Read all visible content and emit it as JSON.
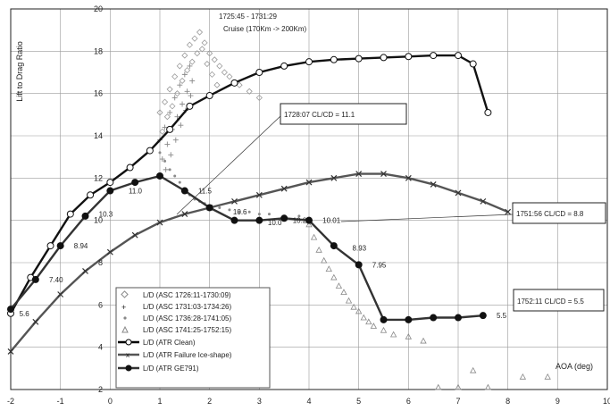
{
  "chart_data": {
    "type": "scatter",
    "title": "",
    "xlabel": "AOA (deg)",
    "ylabel": "Lift to Drag Ratio",
    "xlim": [
      -2,
      10
    ],
    "ylim": [
      2,
      20
    ],
    "x_ticks": [
      -2,
      -1,
      0,
      1,
      2,
      3,
      4,
      5,
      6,
      7,
      8,
      9,
      10
    ],
    "x_tick_labels": [
      "-2",
      "-1",
      "0",
      "1",
      "2",
      "3",
      "4",
      "5",
      "6",
      "7",
      "8",
      "9",
      "10"
    ],
    "y_ticks": [
      2,
      4,
      6,
      8,
      10,
      12,
      14,
      16,
      18,
      20
    ],
    "y_tick_labels": [
      "2",
      "4",
      "6",
      "8",
      "10",
      "12",
      "14",
      "16",
      "18",
      "20"
    ],
    "grid": true,
    "legend_position": "bottom-left",
    "series": [
      {
        "name": "L/D (ATR Clean)",
        "kind": "line",
        "marker": "circle-open",
        "x": [
          -2,
          -1.6,
          -1.2,
          -0.8,
          -0.4,
          0,
          0.4,
          0.8,
          1.2,
          1.6,
          2.0,
          2.5,
          3.0,
          3.5,
          4.0,
          4.5,
          5.0,
          5.5,
          6.0,
          6.5,
          7.0,
          7.3,
          7.6
        ],
        "y": [
          5.6,
          7.3,
          8.8,
          10.3,
          11.2,
          11.8,
          12.5,
          13.3,
          14.3,
          15.4,
          15.9,
          16.5,
          17.0,
          17.3,
          17.5,
          17.6,
          17.65,
          17.7,
          17.75,
          17.8,
          17.8,
          17.4,
          15.1
        ]
      },
      {
        "name": "L/D (ATR Failure Ice-shape)",
        "kind": "line",
        "marker": "x",
        "x": [
          -2,
          -1.5,
          -1.0,
          -0.5,
          0,
          0.5,
          1.0,
          1.5,
          2.0,
          2.5,
          3.0,
          3.5,
          4.0,
          4.5,
          5.0,
          5.5,
          6.0,
          6.5,
          7.0,
          7.5,
          8.0
        ],
        "y": [
          3.8,
          5.2,
          6.5,
          7.6,
          8.5,
          9.3,
          9.9,
          10.3,
          10.6,
          10.9,
          11.2,
          11.5,
          11.8,
          12.0,
          12.2,
          12.2,
          12.0,
          11.7,
          11.3,
          10.9,
          10.4
        ]
      },
      {
        "name": "L/D (ATR GE791)",
        "kind": "line",
        "marker": "circle-filled",
        "x": [
          -2,
          -1.5,
          -1.0,
          -0.5,
          0,
          0.5,
          1.0,
          1.5,
          2.0,
          2.5,
          3.0,
          3.5,
          4.0,
          4.5,
          5.0,
          5.5,
          6.0,
          6.5,
          7.0,
          7.5
        ],
        "y": [
          5.8,
          7.2,
          8.8,
          10.2,
          11.4,
          11.8,
          12.1,
          11.4,
          10.6,
          10.0,
          10.0,
          10.1,
          10.0,
          8.8,
          7.9,
          5.3,
          5.3,
          5.4,
          5.4,
          5.5
        ]
      }
    ],
    "scatter_series": [
      {
        "name": "L/D (ASC 1726:11-1730:09)",
        "marker": "diamond-open",
        "x": [
          1.0,
          1.1,
          1.2,
          1.3,
          1.4,
          1.5,
          1.6,
          1.7,
          1.8,
          1.9,
          2.0,
          2.1,
          2.2,
          2.3,
          2.4,
          2.6,
          2.8,
          3.0,
          1.05,
          1.15,
          1.25,
          1.35,
          1.45,
          1.55,
          1.65,
          1.75,
          1.85,
          1.95,
          2.05,
          2.15
        ],
        "y": [
          15.1,
          15.6,
          16.2,
          16.8,
          17.3,
          17.8,
          18.3,
          18.6,
          18.9,
          18.4,
          17.9,
          17.6,
          17.3,
          17.0,
          16.8,
          16.4,
          16.1,
          15.8,
          14.2,
          14.9,
          15.4,
          16.0,
          16.6,
          17.1,
          17.5,
          17.9,
          18.1,
          17.4,
          16.9,
          16.4
        ]
      },
      {
        "name": "L/D (ASC 1731:03-1734:26)",
        "marker": "plus",
        "x": [
          1.0,
          1.1,
          1.2,
          1.3,
          1.4,
          1.5,
          1.6,
          1.05,
          1.15,
          1.25,
          1.35,
          1.45,
          1.55,
          1.65,
          1.12,
          1.22,
          1.32,
          1.42,
          1.52,
          1.62
        ],
        "y": [
          13.8,
          14.4,
          15.1,
          15.8,
          16.4,
          16.9,
          17.3,
          12.9,
          13.6,
          14.3,
          14.9,
          15.5,
          16.1,
          16.6,
          12.4,
          13.1,
          13.8,
          14.5,
          15.2,
          15.9
        ]
      },
      {
        "name": "L/D (ASC 1736:28-1741:05)",
        "marker": "dot",
        "x": [
          1.0,
          1.1,
          1.2,
          1.3,
          1.4,
          1.5,
          1.6,
          1.7,
          1.8,
          1.9,
          2.0,
          2.2,
          2.4,
          2.6,
          2.8,
          3.0,
          3.2,
          3.5,
          3.8,
          4.0
        ],
        "y": [
          13.2,
          12.8,
          12.4,
          12.1,
          11.8,
          11.5,
          11.2,
          11.0,
          10.9,
          10.8,
          10.7,
          10.6,
          10.5,
          10.4,
          10.4,
          10.3,
          10.3,
          10.2,
          10.2,
          10.1
        ]
      },
      {
        "name": "L/D (ASC 1741:25-1752:15)",
        "marker": "triangle-open",
        "x": [
          4.0,
          4.1,
          4.2,
          4.3,
          4.4,
          4.5,
          4.6,
          4.7,
          4.8,
          4.9,
          5.0,
          5.1,
          5.2,
          5.3,
          5.5,
          5.7,
          6.0,
          6.3,
          6.6,
          7.0,
          7.3,
          7.6,
          8.3,
          8.8
        ],
        "y": [
          9.8,
          9.2,
          8.6,
          8.1,
          7.7,
          7.3,
          6.9,
          6.6,
          6.2,
          5.9,
          5.7,
          5.4,
          5.2,
          5.0,
          4.8,
          4.6,
          4.5,
          4.3,
          2.1,
          2.1,
          2.9,
          2.1,
          2.6,
          2.6
        ]
      }
    ],
    "point_labels": [
      {
        "x": -1.9,
        "y": 5.6,
        "text": "5.6"
      },
      {
        "x": -1.3,
        "y": 7.2,
        "text": "7.40"
      },
      {
        "x": -0.8,
        "y": 8.8,
        "text": "8.94"
      },
      {
        "x": -0.3,
        "y": 10.3,
        "text": "10.3"
      },
      {
        "x": 0.3,
        "y": 11.4,
        "text": "11.0"
      },
      {
        "x": 1.7,
        "y": 11.4,
        "text": "11.5"
      },
      {
        "x": 2.4,
        "y": 10.4,
        "text": "10.6"
      },
      {
        "x": 3.1,
        "y": 9.9,
        "text": "10.0"
      },
      {
        "x": 3.6,
        "y": 10.0,
        "text": "10.2"
      },
      {
        "x": 4.2,
        "y": 10.0,
        "text": "10.01"
      },
      {
        "x": 4.8,
        "y": 8.7,
        "text": "8.93"
      },
      {
        "x": 5.2,
        "y": 7.9,
        "text": "7.95"
      },
      {
        "x": 7.7,
        "y": 5.5,
        "text": "5.5"
      }
    ],
    "annotations": {
      "top": "1725:45 - 1731:29",
      "top_sub": "Cruise (170Km -> 200Km)",
      "box1": "1728:07 CL/CD = 11.1",
      "box2": "1751:56 CL/CD = 8.8",
      "box3": "1752:11 CL/CD = 5.5"
    }
  }
}
